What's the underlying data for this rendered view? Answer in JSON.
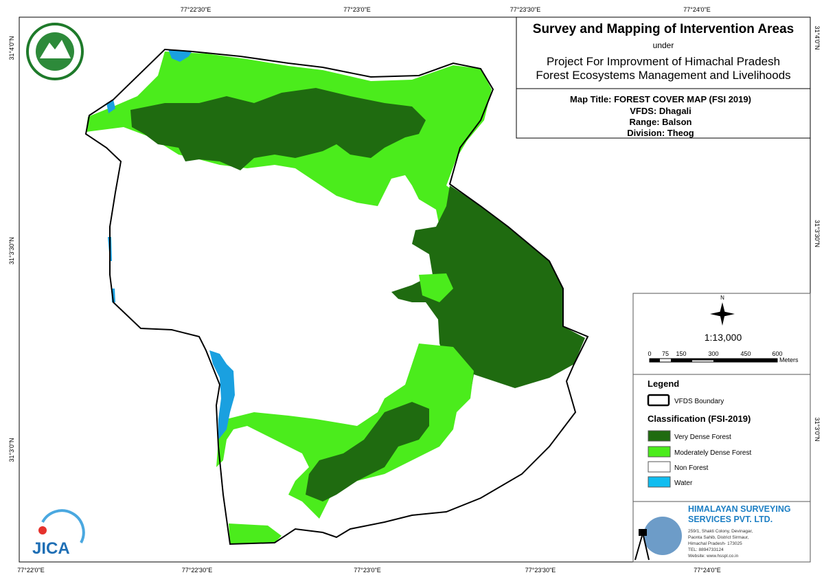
{
  "map": {
    "top_ticks": [
      "77°22'30\"E",
      "77°23'0\"E",
      "77°23'30\"E",
      "77°24'0\"E"
    ],
    "bottom_ticks": [
      "77°22'0\"E",
      "77°22'30\"E",
      "77°23'0\"E",
      "77°23'30\"E",
      "77°24'0\"E"
    ],
    "left_ticks": [
      "31°4'0\"N",
      "31°3'30\"N",
      "31°3'0\"N"
    ],
    "right_ticks": [
      "31°4'0\"N",
      "31°3'30\"N",
      "31°3'0\"N"
    ]
  },
  "title_block": {
    "title": "Survey and Mapping of Intervention Areas",
    "under": "under",
    "project_line1": "Project For Improvment of Himachal Pradesh",
    "project_line2": "Forest Ecosystems Management and Livelihoods"
  },
  "map_info": {
    "map_title": "Map Title: FOREST COVER MAP (FSI 2019)",
    "vfds": "VFDS: Dhagali",
    "range": "Range: Balson",
    "division": "Division: Theog"
  },
  "scale": {
    "north": "N",
    "ratio": "1:13,000",
    "labels": [
      "0",
      "75",
      "150",
      "300",
      "450",
      "600"
    ],
    "unit": "Meters"
  },
  "legend": {
    "title": "Legend",
    "boundary": "VFDS Boundary",
    "classification_title": "Classification (FSI-2019)",
    "items": [
      "Very Dense Forest",
      "Moderately Dense Forest",
      "Non Forest",
      "Water"
    ]
  },
  "company": {
    "name_line1": "HIMALAYAN SURVEYING",
    "name_line2": "SERVICES PVT. LTD.",
    "address": [
      "259/1, Shakti Colony, Devinagar,",
      "Paonta Sahib, District Sirmaur,",
      "Himachal Pradesh- 173025",
      "TEL: 8894733124",
      "Website: www.hsspl.co.in"
    ]
  },
  "logos": {
    "jica": "JICA"
  }
}
